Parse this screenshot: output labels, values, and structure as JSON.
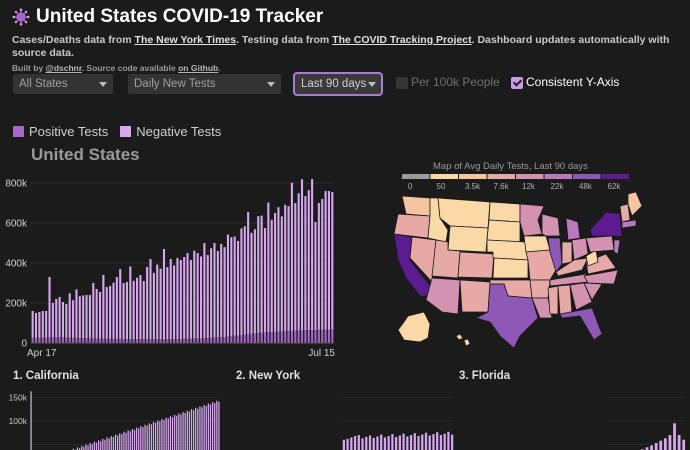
{
  "header": {
    "title": "United States COVID-19 Tracker",
    "subtitle_p1": "Cases/Deaths data from ",
    "nyt_link": "The New York Times",
    "subtitle_p2": ". Testing data from ",
    "ctp_link": "The COVID Tracking Project",
    "subtitle_p3": ". Dashboard updates automatically with source data.",
    "credit_p1": "Built by ",
    "author_link": "@dschnr",
    "credit_p2": ". Source code available ",
    "github_link": "on Github",
    "credit_p3": "."
  },
  "controls": {
    "region": "All States",
    "metric": "Daily New Tests",
    "period": "Last 90 days",
    "per100k_label": "Per 100k People",
    "per100k_checked": false,
    "consistent_label": "Consistent Y-Axis",
    "consistent_checked": true
  },
  "legend": {
    "positive": "Positive Tests",
    "negative": "Negative Tests",
    "positive_color": "#a566c7",
    "negative_color": "#d7a8f0"
  },
  "chart_data": [
    {
      "type": "bar",
      "title": "United States",
      "stacked": true,
      "ylim": [
        0,
        850000
      ],
      "yticks": [
        "0",
        "200k",
        "400k",
        "600k",
        "800k"
      ],
      "xticks": [
        "Apr 17",
        "Jul 15"
      ],
      "series": [
        {
          "name": "Positive Tests",
          "color": "#a566c7",
          "values": [
            27000,
            27000,
            26000,
            26000,
            27000,
            28000,
            28000,
            29000,
            30000,
            30000,
            28000,
            27000,
            26000,
            26000,
            25000,
            24000,
            25000,
            24000,
            23000,
            23000,
            22000,
            22000,
            22000,
            21000,
            21000,
            21000,
            21000,
            20000,
            20000,
            20000,
            20000,
            20000,
            20000,
            19000,
            19000,
            19000,
            19000,
            19000,
            19000,
            19000,
            19000,
            20000,
            20000,
            20000,
            20000,
            21000,
            21000,
            22000,
            22000,
            23000,
            23000,
            24000,
            25000,
            26000,
            27000,
            28000,
            29000,
            30000,
            32000,
            34000,
            36000,
            38000,
            40000,
            42000,
            44000,
            46000,
            48000,
            50000,
            52000,
            53000,
            54000,
            55000,
            56000,
            57000,
            58000,
            59000,
            60000,
            61000,
            62000,
            63000,
            63000,
            64000,
            64000,
            65000,
            65000,
            66000,
            66000,
            66000,
            67000,
            67000
          ]
        },
        {
          "name": "Negative Tests",
          "color": "#d7a8f0",
          "values": [
            133000,
            123000,
            129000,
            134000,
            133000,
            302000,
            172000,
            191000,
            200000,
            175000,
            167000,
            222000,
            188000,
            242000,
            209000,
            214000,
            215000,
            216000,
            277000,
            247000,
            233000,
            318000,
            258000,
            264000,
            280000,
            309000,
            349000,
            280000,
            285000,
            363000,
            291000,
            306000,
            320000,
            291000,
            361000,
            401000,
            332000,
            373000,
            353000,
            451000,
            361000,
            400000,
            368000,
            405000,
            395000,
            409000,
            429000,
            393000,
            440000,
            427000,
            410000,
            476000,
            415000,
            448000,
            473000,
            432000,
            466000,
            449000,
            510000,
            495000,
            496000,
            472000,
            533000,
            542000,
            611000,
            505000,
            521000,
            584000,
            585000,
            522000,
            648000,
            561000,
            594000,
            622000,
            575000,
            632000,
            624000,
            740000,
            637000,
            686000,
            756000,
            670000,
            700000,
            755000,
            540000,
            634000,
            654000,
            694000,
            693000,
            688000
          ]
        }
      ]
    },
    {
      "type": "bar",
      "title": "1. California",
      "yticks": [
        "100k",
        "150k"
      ],
      "ylim": [
        0,
        170000
      ],
      "series": [
        {
          "name": "Negative Tests",
          "color": "#d7a8f0",
          "values": [
            163000,
            25000,
            22000,
            18000,
            20000,
            23000,
            21000,
            24000,
            26000,
            22000,
            28000,
            25000,
            30000,
            27000,
            32000,
            29000,
            35000,
            33000,
            38000,
            36000,
            41000,
            39000,
            44000,
            42000,
            47000,
            45000,
            50000,
            48000,
            53000,
            51000,
            56000,
            54000,
            59000,
            57000,
            62000,
            60000,
            65000,
            63000,
            68000,
            66000,
            71000,
            69000,
            74000,
            72000,
            77000,
            75000,
            80000,
            78000,
            83000,
            81000,
            86000,
            84000,
            89000,
            87000,
            92000,
            90000,
            95000,
            93000,
            98000,
            96000,
            101000,
            99000,
            104000,
            102000,
            107000,
            105000,
            110000,
            108000,
            113000,
            111000,
            116000,
            114000,
            119000,
            117000,
            122000,
            120000,
            125000,
            123000,
            128000,
            126000,
            131000,
            129000,
            134000,
            132000,
            137000,
            135000,
            140000,
            138000,
            143000,
            141000
          ]
        }
      ]
    },
    {
      "type": "bar",
      "title": "2. New York",
      "series": [
        {
          "name": "Negative Tests",
          "color": "#d7a8f0",
          "values": [
            60000,
            62000,
            65000,
            68000,
            70000,
            63000,
            66000,
            69000,
            64000,
            67000,
            71000,
            65000,
            68000,
            72000,
            66000,
            69000,
            73000,
            67000,
            70000,
            74000,
            68000,
            71000,
            75000,
            69000,
            72000,
            76000,
            70000,
            73000,
            77000,
            71000
          ]
        }
      ]
    },
    {
      "type": "bar",
      "title": "3. Florida",
      "series": [
        {
          "name": "Negative Tests",
          "color": "#d7a8f0",
          "values": [
            20000,
            22000,
            25000,
            28000,
            30000,
            33000,
            36000,
            40000,
            44000,
            48000,
            53000,
            58000,
            63000,
            70000,
            95000,
            70000,
            60000
          ]
        }
      ]
    }
  ],
  "map": {
    "title": "Map of Avg Daily Tests, Last 90 days",
    "legend_labels": [
      "0",
      "50",
      "3.5k",
      "7.6k",
      "12k",
      "22k",
      "48k",
      "62k"
    ],
    "legend_colors": [
      "#9a9a9a",
      "#fbd9a6",
      "#f4c6a0",
      "#e6a9a6",
      "#d492b1",
      "#b97abd",
      "#8f57b6",
      "#5a1c8e"
    ]
  },
  "small_charts": {
    "california_title": "1. California",
    "new_york_title": "2. New York",
    "florida_title": "3. Florida"
  }
}
